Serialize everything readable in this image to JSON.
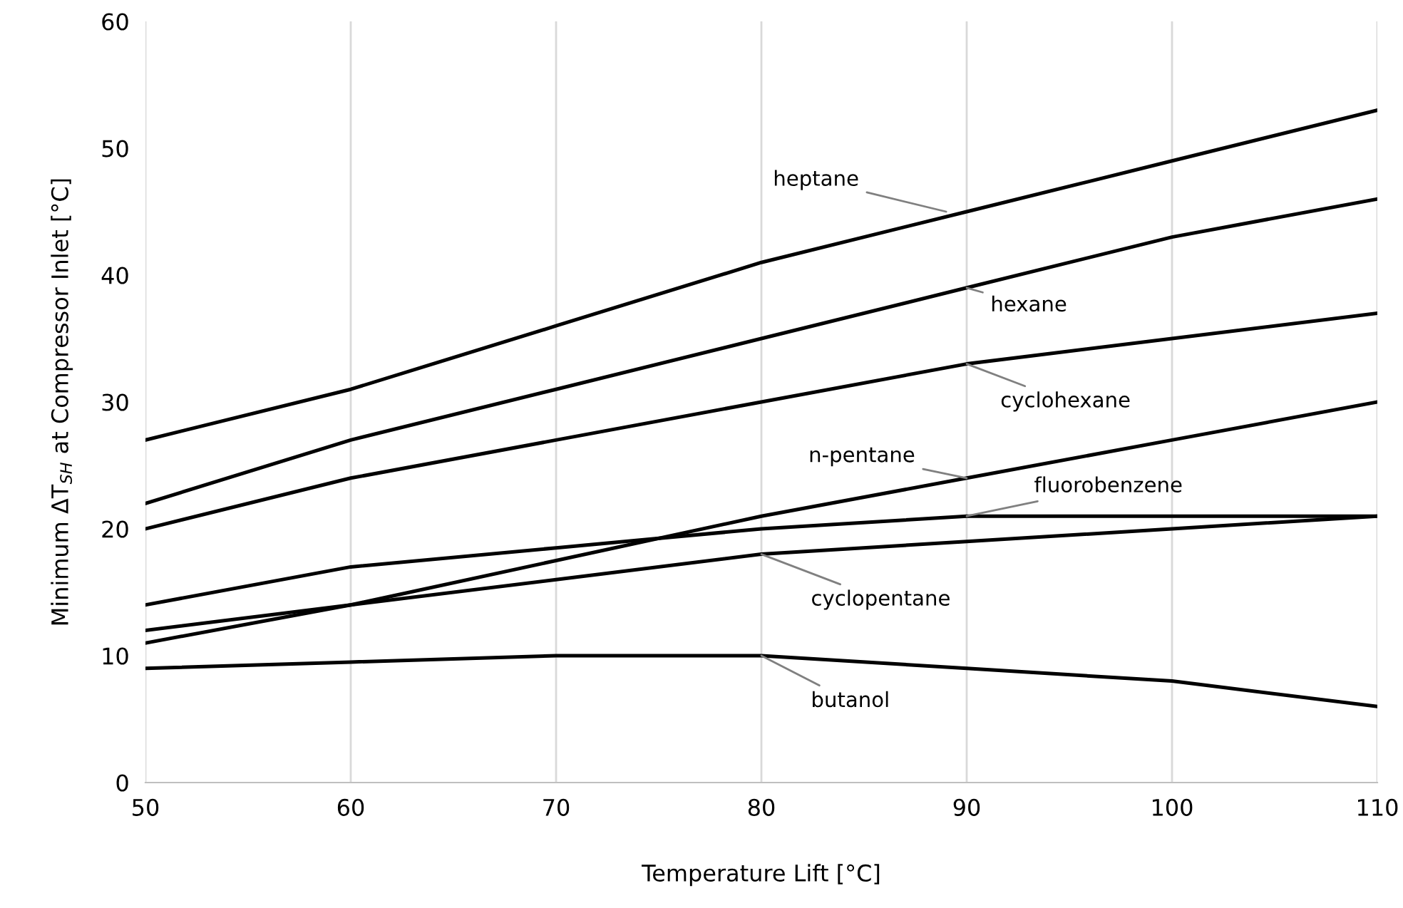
{
  "chart_data": {
    "type": "line",
    "xlabel": "Temperature Lift [°C]",
    "ylabel": "Minimum ΔT$_{SH}$ at Compressor Inlet [°C]",
    "x": [
      50,
      60,
      70,
      80,
      90,
      100,
      110
    ],
    "series": [
      {
        "color": "#000000",
        "values": [
          27,
          31,
          36,
          41,
          45,
          49,
          53
        ]
      },
      {
        "color": "#000000",
        "values": [
          22,
          27,
          31,
          35,
          39,
          43,
          46
        ]
      },
      {
        "color": "#000000",
        "values": [
          20,
          24,
          27,
          30,
          33,
          35,
          37
        ]
      },
      {
        "color": "#000000",
        "values": [
          11,
          14,
          17.5,
          21,
          24,
          27,
          30
        ]
      },
      {
        "color": "#000000",
        "values": [
          14,
          17,
          18.5,
          20,
          21,
          21,
          21
        ]
      },
      {
        "color": "#000000",
        "values": [
          12,
          14,
          16,
          18,
          19,
          20,
          21
        ]
      },
      {
        "color": "#000000",
        "values": [
          9,
          9.5,
          10,
          10,
          9,
          8,
          6
        ]
      }
    ],
    "annotations": [
      {
        "text": "heptane",
        "x": 89,
        "y": 45
      },
      {
        "text": "hexane",
        "x": 90,
        "y": 39
      },
      {
        "text": "cyclohexane",
        "x": 90,
        "y": 33
      },
      {
        "text": "n-pentane",
        "x": 90,
        "y": 24
      },
      {
        "text": "fluorobenzene",
        "x": 90,
        "y": 21
      },
      {
        "text": "cyclopentane",
        "x": 80,
        "y": 18
      },
      {
        "text": "butanol",
        "x": 80,
        "y": 10
      }
    ],
    "xlim": [
      50,
      110
    ],
    "xticks": [
      50,
      60,
      70,
      80,
      90,
      100,
      110
    ],
    "ylim": [
      0,
      60
    ],
    "yticks": [
      0,
      10,
      20,
      30,
      40,
      50,
      60
    ],
    "grid": "x",
    "legend": false,
    "marker": "none",
    "line_style": "solid"
  }
}
